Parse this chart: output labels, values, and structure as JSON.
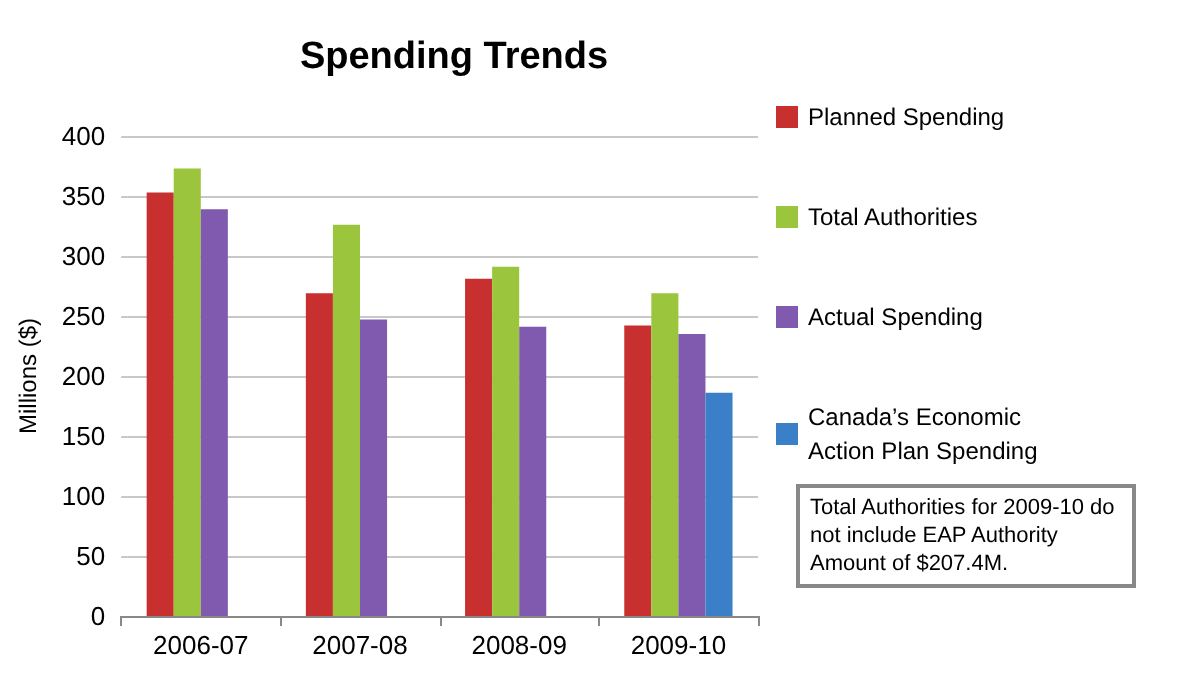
{
  "chart_data": {
    "type": "bar",
    "title": "Spending Trends",
    "ylabel": "Millions ($)",
    "categories": [
      "2006-07",
      "2007-08",
      "2008-09",
      "2009-10"
    ],
    "series": [
      {
        "name": "Planned Spending",
        "color": "#c8302f",
        "values": [
          353,
          269,
          281,
          242
        ]
      },
      {
        "name": "Total Authorities",
        "color": "#9bc53d",
        "values": [
          373,
          326,
          291,
          269
        ]
      },
      {
        "name": "Actual Spending",
        "color": "#7f5aae",
        "values": [
          339,
          247,
          241,
          235
        ]
      },
      {
        "name": "Canada’s Economic Action Plan Spending",
        "color": "#3a7fc8",
        "values": [
          null,
          null,
          null,
          186
        ]
      }
    ],
    "ylim": [
      0,
      400
    ],
    "yticks": [
      0,
      50,
      100,
      150,
      200,
      250,
      300,
      350,
      400
    ],
    "grid": "y",
    "legend": "right",
    "annotations": [
      "Total Authorities for 2009-10 do not include EAP Authority Amount of $207.4M."
    ]
  }
}
